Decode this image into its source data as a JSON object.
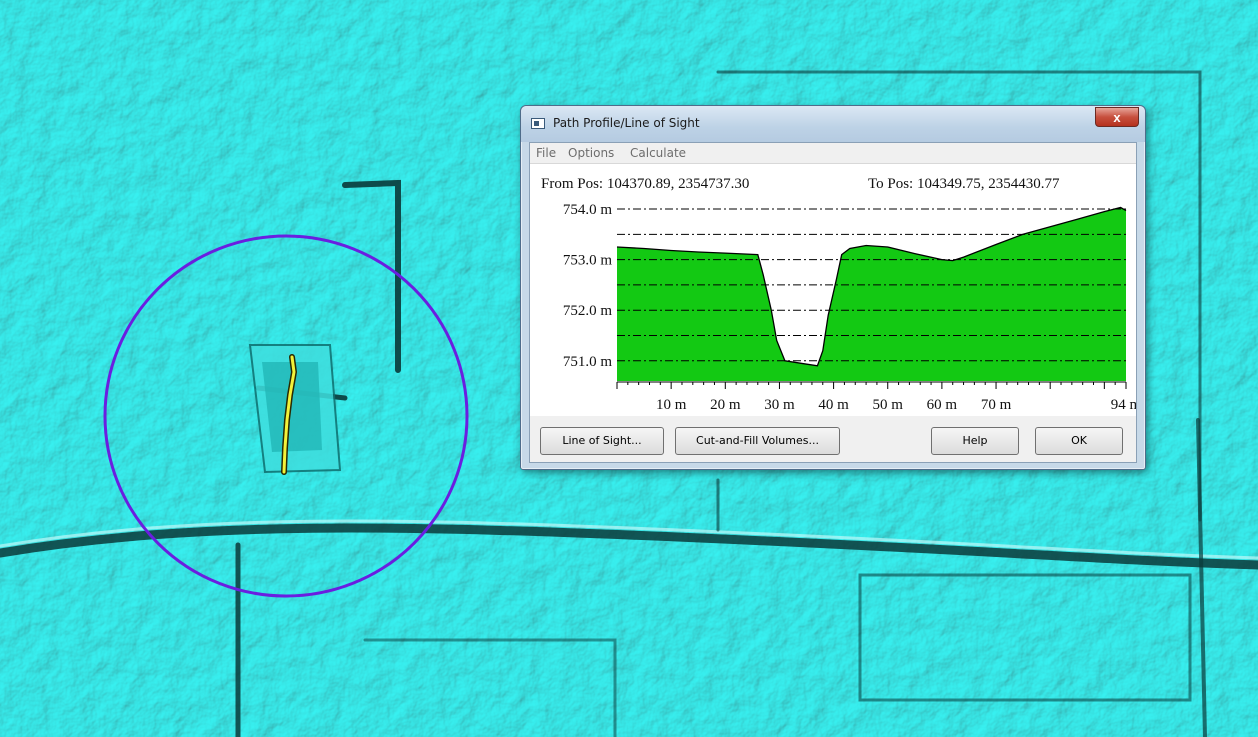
{
  "window": {
    "title": "Path Profile/Line of Sight",
    "close_label": "x"
  },
  "menu": [
    "File",
    "Options",
    "Calculate"
  ],
  "profile": {
    "from_pos": "From Pos: 104370.89, 2354737.30",
    "to_pos": "To Pos: 104349.75, 2354430.77"
  },
  "buttons": {
    "line_of_sight": "Line of Sight...",
    "cut_fill": "Cut-and-Fill Volumes...",
    "help": "Help",
    "ok": "OK"
  },
  "colors": {
    "terrain_fill": "#13c913",
    "map_background": "#1fc9c9",
    "path_line": "#f2f23a",
    "circle": "#6a1ee0"
  },
  "chart_data": {
    "type": "area",
    "xlabel": "",
    "ylabel": "",
    "xlim": [
      0,
      94
    ],
    "ylim": [
      750.6,
      754.1
    ],
    "x_ticks": [
      {
        "value": 10,
        "label": "10 m"
      },
      {
        "value": 20,
        "label": "20 m"
      },
      {
        "value": 30,
        "label": "30 m"
      },
      {
        "value": 40,
        "label": "40 m"
      },
      {
        "value": 50,
        "label": "50 m"
      },
      {
        "value": 60,
        "label": "60 m"
      },
      {
        "value": 70,
        "label": "70 m"
      },
      {
        "value": 94,
        "label": "94 m"
      }
    ],
    "y_ticks": [
      {
        "value": 751.0,
        "label": "751.0 m"
      },
      {
        "value": 752.0,
        "label": "752.0 m"
      },
      {
        "value": 753.0,
        "label": "753.0 m"
      },
      {
        "value": 754.0,
        "label": "754.0 m"
      }
    ],
    "grid_lines": [
      751.0,
      751.5,
      752.0,
      752.5,
      753.0,
      753.5,
      754.0
    ],
    "x": [
      0,
      5,
      10,
      15,
      20,
      26,
      27,
      28.5,
      29.5,
      31,
      34,
      37,
      38,
      39,
      40.5,
      41.5,
      43,
      46,
      50,
      55,
      60,
      62,
      64,
      70,
      75,
      80,
      85,
      90,
      93,
      94
    ],
    "y": [
      753.25,
      753.22,
      753.18,
      753.15,
      753.13,
      753.1,
      752.7,
      752.0,
      751.4,
      751.0,
      750.95,
      750.9,
      751.2,
      751.9,
      752.6,
      753.1,
      753.22,
      753.28,
      753.25,
      753.12,
      753.0,
      752.98,
      753.05,
      753.3,
      753.5,
      753.65,
      753.8,
      753.95,
      754.03,
      753.97
    ]
  }
}
